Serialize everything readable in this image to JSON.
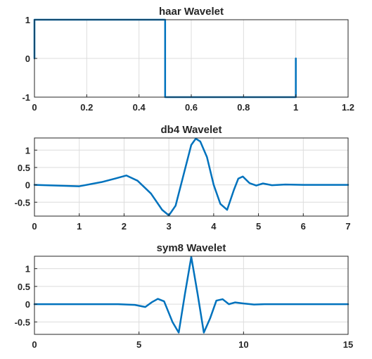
{
  "chart_data": [
    {
      "type": "line",
      "title": "haar Wavelet",
      "xlabel": "",
      "ylabel": "",
      "xlim": [
        0,
        1.2
      ],
      "ylim": [
        -1,
        1
      ],
      "xticks": [
        0,
        0.2,
        0.4,
        0.6,
        0.8,
        1,
        1.2
      ],
      "xtick_labels": [
        "0",
        "0.2",
        "0.4",
        "0.6",
        "0.8",
        "1",
        "1.2"
      ],
      "yticks": [
        -1,
        0,
        1
      ],
      "ytick_labels": [
        "-1",
        "0",
        "1"
      ],
      "grid": true,
      "color": "#0072bd",
      "series": [
        {
          "x": [
            0,
            0,
            0.5,
            0.5,
            1,
            1
          ],
          "y": [
            0,
            1,
            1,
            -1,
            -1,
            0
          ]
        }
      ]
    },
    {
      "type": "line",
      "title": "db4 Wavelet",
      "xlabel": "",
      "ylabel": "",
      "xlim": [
        0,
        7
      ],
      "ylim": [
        -0.9,
        1.35
      ],
      "xticks": [
        0,
        1,
        2,
        3,
        4,
        5,
        6,
        7
      ],
      "xtick_labels": [
        "0",
        "1",
        "2",
        "3",
        "4",
        "5",
        "6",
        "7"
      ],
      "yticks": [
        -0.5,
        0,
        0.5,
        1
      ],
      "ytick_labels": [
        "-0.5",
        "0",
        "0.5",
        "1"
      ],
      "grid": true,
      "color": "#0072bd",
      "series": [
        {
          "x": [
            0,
            0.5,
            1.0,
            1.5,
            1.8,
            2.05,
            2.3,
            2.6,
            2.85,
            3.0,
            3.15,
            3.35,
            3.5,
            3.6,
            3.7,
            3.85,
            4.0,
            4.15,
            4.3,
            4.45,
            4.55,
            4.65,
            4.8,
            4.95,
            5.1,
            5.3,
            5.6,
            6.0,
            6.5,
            7.0
          ],
          "y": [
            0,
            -0.02,
            -0.04,
            0.08,
            0.18,
            0.27,
            0.12,
            -0.25,
            -0.72,
            -0.88,
            -0.6,
            0.4,
            1.15,
            1.33,
            1.25,
            0.8,
            0.0,
            -0.55,
            -0.72,
            -0.15,
            0.18,
            0.24,
            0.05,
            -0.02,
            0.04,
            -0.01,
            0.01,
            0,
            0,
            0
          ]
        }
      ]
    },
    {
      "type": "line",
      "title": "sym8 Wavelet",
      "xlabel": "",
      "ylabel": "",
      "xlim": [
        0,
        15
      ],
      "ylim": [
        -0.85,
        1.35
      ],
      "xticks": [
        0,
        5,
        10,
        15
      ],
      "xtick_labels": [
        "0",
        "5",
        "10",
        "15"
      ],
      "yticks": [
        -0.5,
        0,
        0.5,
        1
      ],
      "ytick_labels": [
        "-0.5",
        "0",
        "0.5",
        "1"
      ],
      "grid": true,
      "color": "#0072bd",
      "series": [
        {
          "x": [
            0,
            4.0,
            4.8,
            5.3,
            5.6,
            5.9,
            6.2,
            6.6,
            6.9,
            7.2,
            7.5,
            7.8,
            8.1,
            8.4,
            8.7,
            9.0,
            9.3,
            9.6,
            10.0,
            10.5,
            11.0,
            15.0
          ],
          "y": [
            0,
            0,
            -0.02,
            -0.08,
            0.05,
            0.15,
            0.08,
            -0.5,
            -0.8,
            0.3,
            1.33,
            0.3,
            -0.8,
            -0.4,
            0.1,
            0.14,
            0.0,
            0.05,
            0.02,
            -0.01,
            0,
            0
          ]
        }
      ]
    }
  ]
}
